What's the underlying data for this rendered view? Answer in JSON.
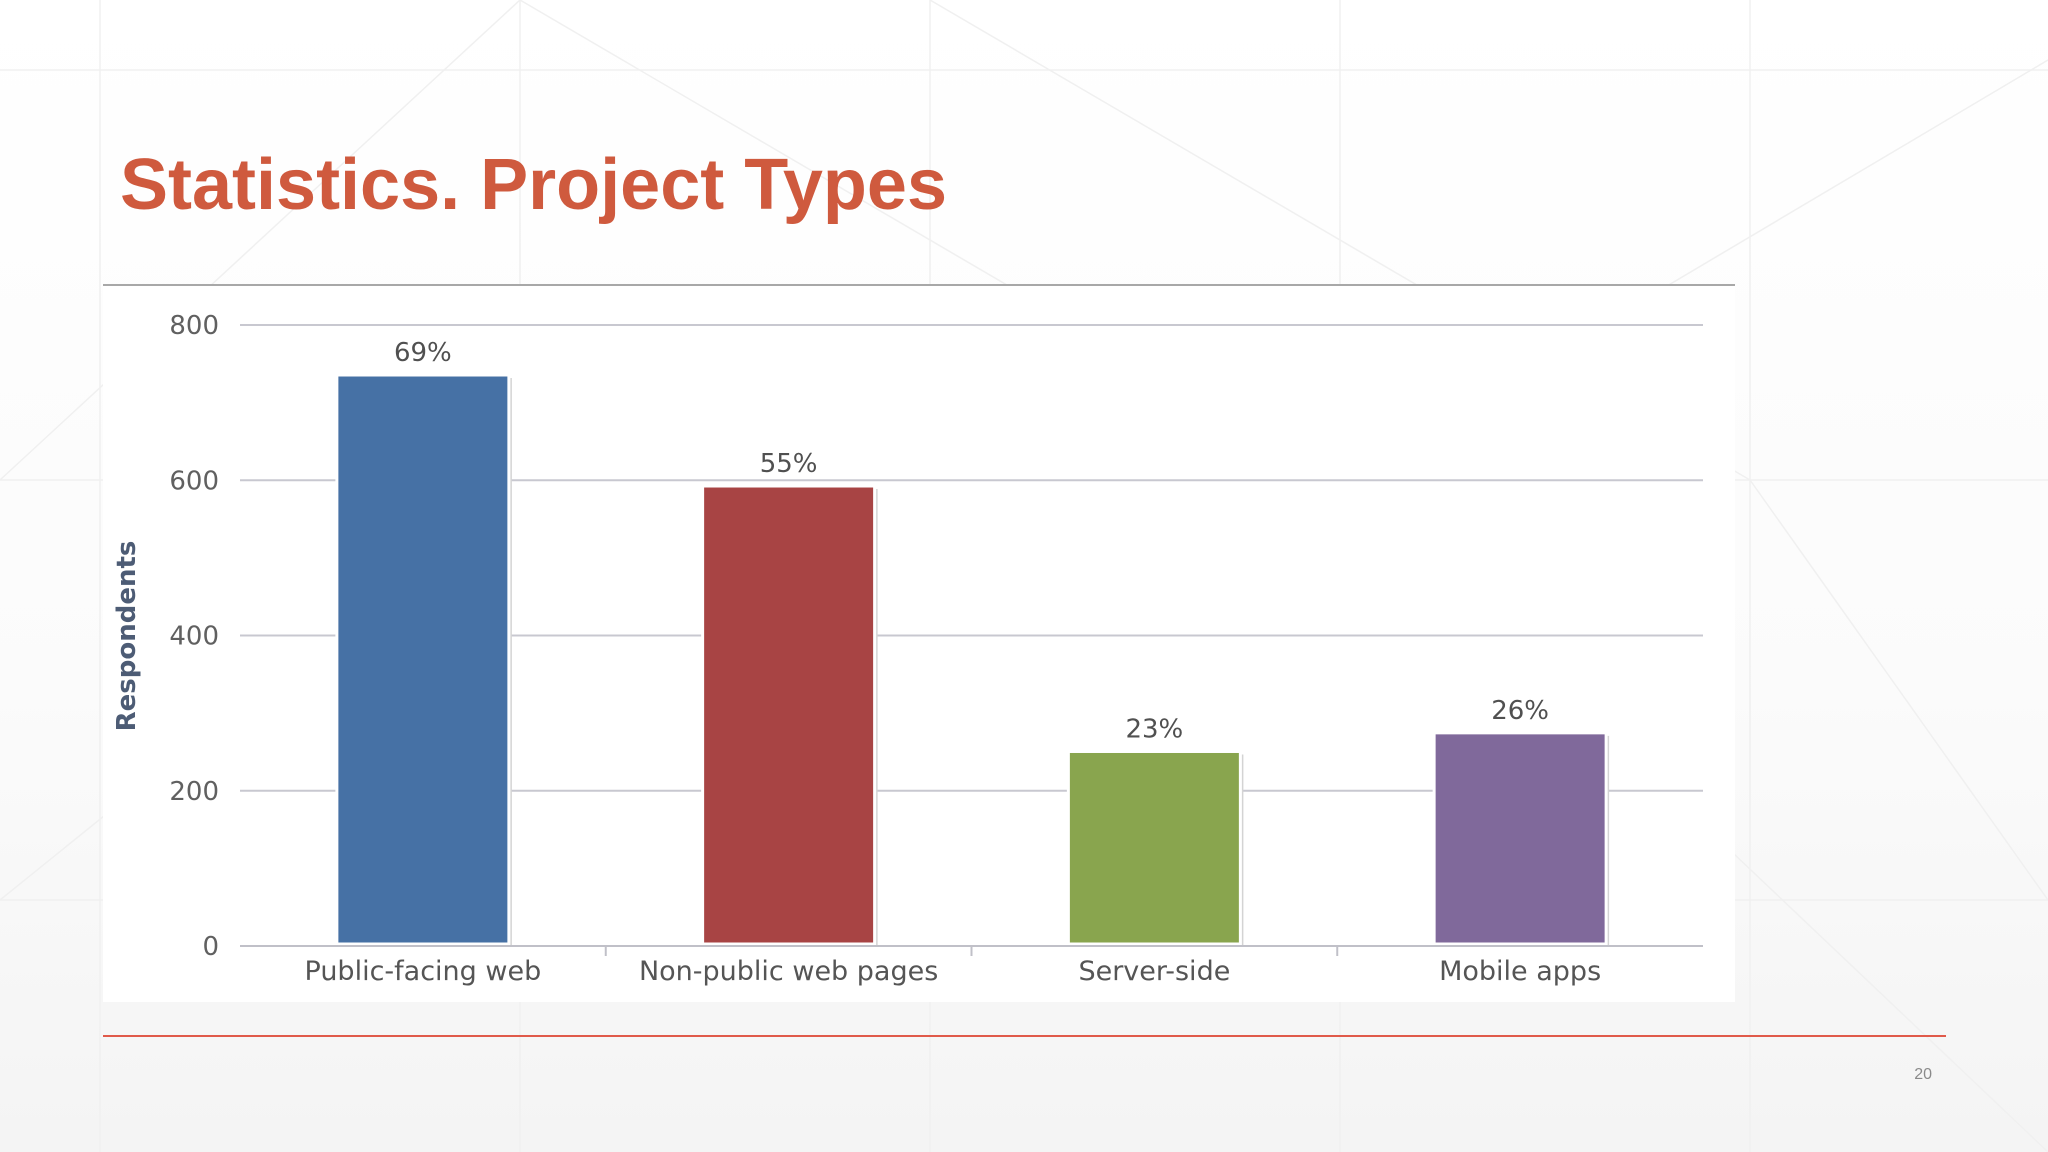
{
  "slide": {
    "title": "Statistics. Project Types",
    "page_number": "20"
  },
  "colors": {
    "title": "#cf5a3e",
    "footer_rule": "#e05a4a",
    "grid": "#c8c8d0",
    "axis_label": "#4d5c75"
  },
  "chart_data": {
    "type": "bar",
    "title": "",
    "xlabel": "",
    "ylabel": "Respondents",
    "ylim": [
      0,
      800
    ],
    "yticks": [
      0,
      200,
      400,
      600,
      800
    ],
    "grid": true,
    "legend": "none",
    "categories": [
      "Public-facing web",
      "Non-public web pages",
      "Server-side",
      "Mobile apps"
    ],
    "values": [
      733,
      590,
      248,
      272
    ],
    "data_labels": [
      "69%",
      "55%",
      "23%",
      "26%"
    ],
    "colors": [
      "#4671a5",
      "#a84444",
      "#89a54e",
      "#80699b"
    ]
  }
}
